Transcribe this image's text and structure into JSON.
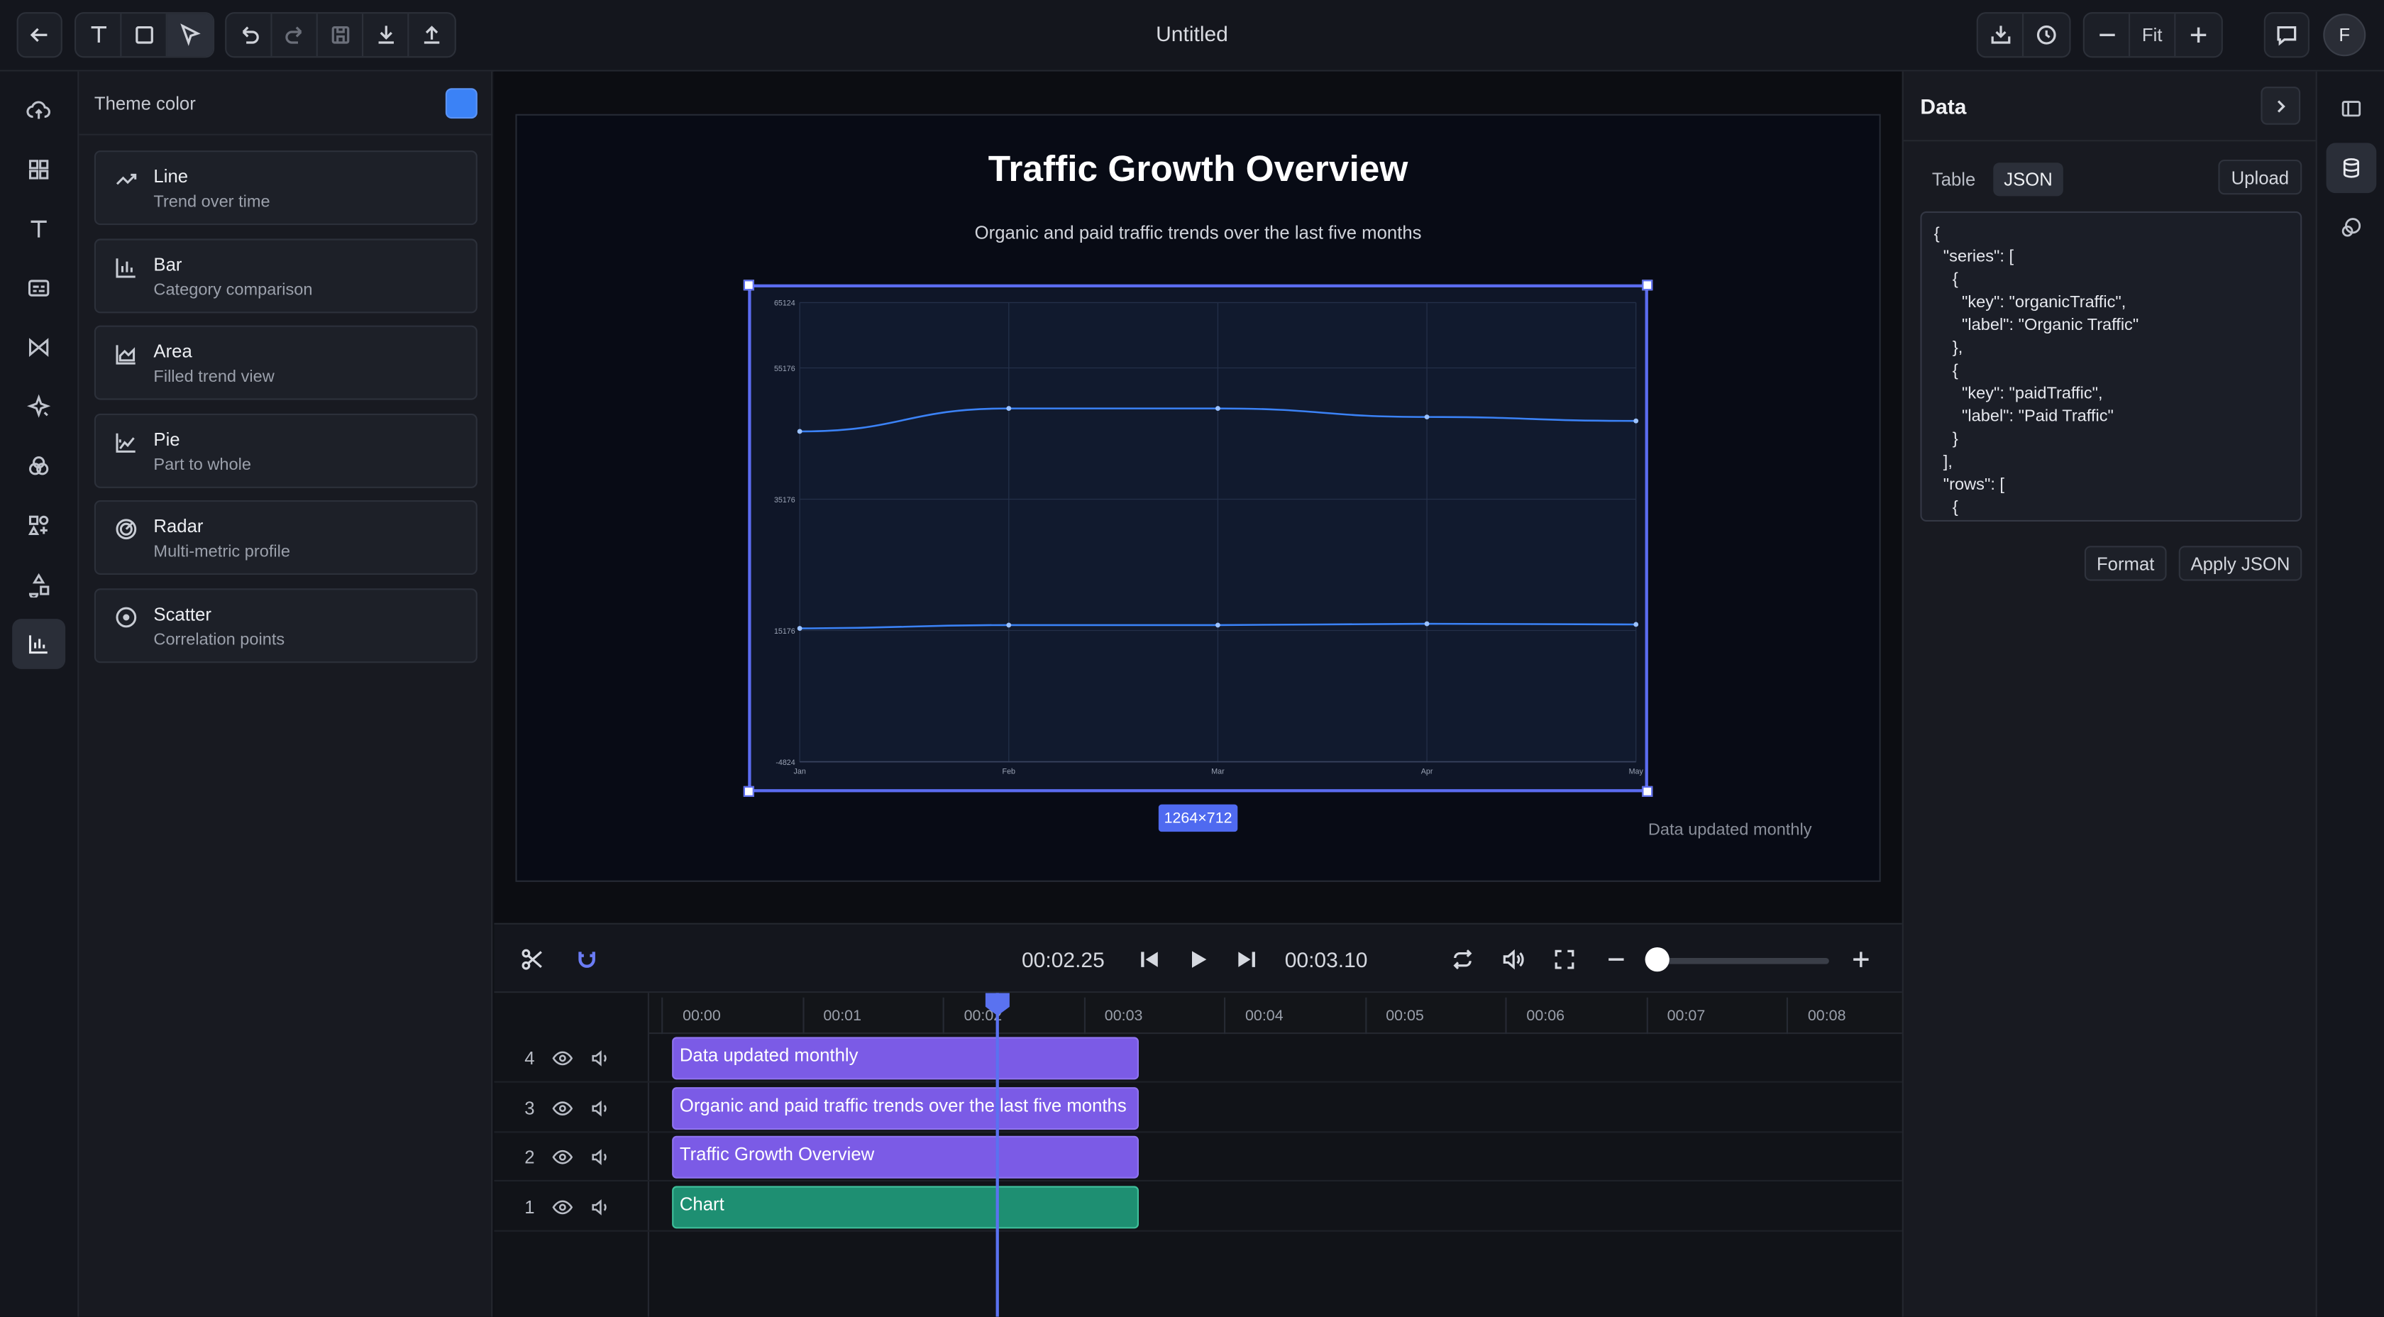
{
  "header": {
    "title": "Untitled",
    "zoom_label": "Fit",
    "avatar_initial": "F"
  },
  "theme": {
    "label": "Theme color",
    "color": "#3b82f6"
  },
  "chart_types": [
    {
      "name": "Line",
      "desc": "Trend over time",
      "icon": "line-chart-icon"
    },
    {
      "name": "Bar",
      "desc": "Category comparison",
      "icon": "bar-chart-icon"
    },
    {
      "name": "Area",
      "desc": "Filled trend view",
      "icon": "area-chart-icon"
    },
    {
      "name": "Pie",
      "desc": "Part to whole",
      "icon": "pie-chart-icon"
    },
    {
      "name": "Radar",
      "desc": "Multi-metric profile",
      "icon": "radar-chart-icon"
    },
    {
      "name": "Scatter",
      "desc": "Correlation points",
      "icon": "scatter-chart-icon"
    }
  ],
  "canvas": {
    "title": "Traffic Growth Overview",
    "subtitle": "Organic and paid traffic trends over the last five months",
    "footnote": "Data updated monthly",
    "size_badge": "1264×712"
  },
  "chart_data": {
    "type": "line",
    "categories": [
      "Jan",
      "Feb",
      "Mar",
      "Apr",
      "May"
    ],
    "series": [
      {
        "name": "Organic Traffic",
        "values": [
          45500,
          49000,
          49000,
          47700,
          47100
        ]
      },
      {
        "name": "Paid Traffic",
        "values": [
          15500,
          16000,
          16000,
          16200,
          16100
        ]
      }
    ],
    "y_ticks": [
      "65124",
      "55176",
      "35176",
      "15176",
      "-4824"
    ],
    "y_tick_values": [
      65124,
      55176,
      35176,
      15176,
      -4824
    ],
    "ylim": [
      -4824,
      65124
    ],
    "grid": true,
    "line_color": "#3b82f6"
  },
  "transport": {
    "current_time": "00:02.25",
    "total_time": "00:03.10",
    "zoom_level": 0.0
  },
  "timeline": {
    "ticks": [
      "00:00",
      "00:01",
      "00:02",
      "00:03",
      "00:04",
      "00:05",
      "00:06",
      "00:07",
      "00:08"
    ],
    "playhead_seconds": 2.25,
    "tracks": [
      {
        "num": "4",
        "clip": "Data updated monthly",
        "kind": "purple"
      },
      {
        "num": "3",
        "clip": "Organic and paid traffic trends over the last five months",
        "kind": "purple"
      },
      {
        "num": "2",
        "clip": "Traffic Growth Overview",
        "kind": "purple"
      },
      {
        "num": "1",
        "clip": "Chart",
        "kind": "green"
      }
    ]
  },
  "data_panel": {
    "title": "Data",
    "tab_table": "Table",
    "tab_json": "JSON",
    "upload": "Upload",
    "json_text": "{\n  \"series\": [\n    {\n      \"key\": \"organicTraffic\",\n      \"label\": \"Organic Traffic\"\n    },\n    {\n      \"key\": \"paidTraffic\",\n      \"label\": \"Paid Traffic\"\n    }\n  ],\n  \"rows\": [\n    {",
    "format": "Format",
    "apply": "Apply JSON"
  }
}
